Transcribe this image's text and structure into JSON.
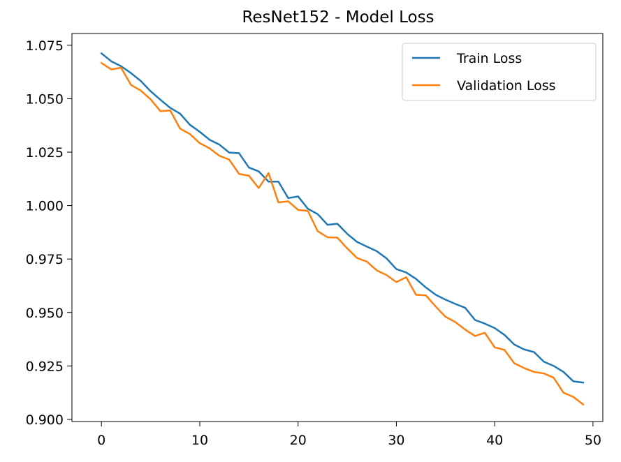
{
  "chart_data": {
    "type": "line",
    "title": "ResNet152 - Model Loss",
    "xlabel": "",
    "ylabel": "",
    "xlim": [
      -3,
      51
    ],
    "ylim": [
      0.899,
      1.0805
    ],
    "xticks": [
      0,
      10,
      20,
      30,
      40,
      50
    ],
    "yticks": [
      0.9,
      0.925,
      0.95,
      0.975,
      1.0,
      1.025,
      1.05,
      1.075
    ],
    "ytick_labels": [
      "0.900",
      "0.925",
      "0.950",
      "0.975",
      "1.000",
      "1.025",
      "1.050",
      "1.075"
    ],
    "grid": false,
    "legend_position": "top-right",
    "x": [
      0,
      1,
      2,
      3,
      4,
      5,
      6,
      7,
      8,
      9,
      10,
      11,
      12,
      13,
      14,
      15,
      16,
      17,
      18,
      19,
      20,
      21,
      22,
      23,
      24,
      25,
      26,
      27,
      28,
      29,
      30,
      31,
      32,
      33,
      34,
      35,
      36,
      37,
      38,
      39,
      40,
      41,
      42,
      43,
      44,
      45,
      46,
      47,
      48,
      49
    ],
    "series": [
      {
        "name": "Train Loss",
        "color": "#1f77b4",
        "values": [
          1.0712,
          1.0675,
          1.0652,
          1.062,
          1.0583,
          1.0535,
          1.0495,
          1.0457,
          1.043,
          1.0378,
          1.0345,
          1.0308,
          1.0285,
          1.0248,
          1.0245,
          1.0178,
          1.016,
          1.0112,
          1.0112,
          1.0035,
          1.0043,
          0.9985,
          0.996,
          0.991,
          0.9915,
          0.9868,
          0.983,
          0.9808,
          0.9787,
          0.9753,
          0.9703,
          0.9687,
          0.9657,
          0.9617,
          0.9583,
          0.956,
          0.954,
          0.9522,
          0.9465,
          0.9448,
          0.9427,
          0.9395,
          0.935,
          0.9327,
          0.9315,
          0.927,
          0.925,
          0.9222,
          0.9178,
          0.9172
        ]
      },
      {
        "name": "Validation Loss",
        "color": "#ff7f0e",
        "values": [
          1.0667,
          1.0637,
          1.0645,
          1.0565,
          1.0538,
          1.0497,
          1.0442,
          1.0445,
          1.036,
          1.0335,
          1.0292,
          1.0268,
          1.0233,
          1.0215,
          1.0148,
          1.014,
          1.0082,
          1.0152,
          1.0015,
          1.002,
          0.998,
          0.9975,
          0.988,
          0.9852,
          0.985,
          0.98,
          0.9755,
          0.9738,
          0.9697,
          0.9675,
          0.9642,
          0.9665,
          0.9583,
          0.958,
          0.9528,
          0.948,
          0.9455,
          0.942,
          0.939,
          0.9405,
          0.9337,
          0.9325,
          0.9262,
          0.924,
          0.9222,
          0.9215,
          0.9195,
          0.9125,
          0.9105,
          0.907
        ]
      }
    ]
  }
}
